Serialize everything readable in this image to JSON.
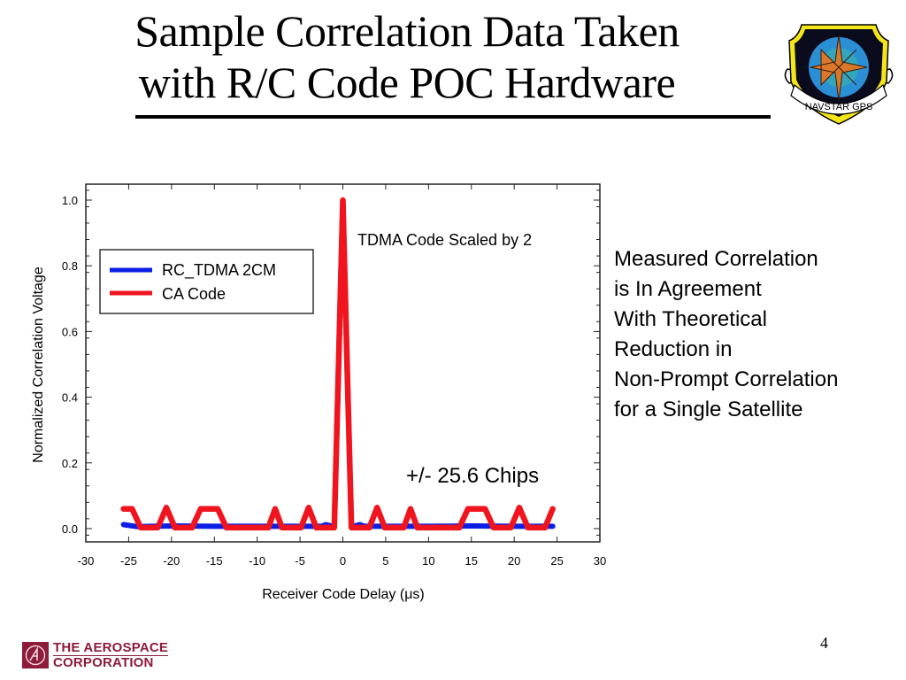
{
  "slide": {
    "title_lines": [
      "Sample Correlation Data Taken",
      "with R/C Code POC Hardware"
    ],
    "side_text_lines": [
      "Measured Correlation",
      "is In Agreement",
      "With Theoretical",
      "Reduction in",
      "Non-Prompt Correlation",
      "for a Single Satellite"
    ],
    "page_number": "4",
    "emblem": {
      "name": "navstar-gps-emblem",
      "text": "NAVSTAR GPS"
    },
    "footer_logo": {
      "line1": "THE AEROSPACE",
      "line2": "CORPORATION",
      "color": "#8e1b3a"
    }
  },
  "chart_data": {
    "type": "line",
    "title": "",
    "xlabel": "Receiver Code Delay (μs)",
    "ylabel": "Normalized Correlation Voltage",
    "xlim": [
      -30,
      30
    ],
    "ylim": [
      -0.04,
      1.05
    ],
    "xticks": [
      -30,
      -25,
      -20,
      -15,
      -10,
      -5,
      0,
      5,
      10,
      15,
      20,
      25,
      30
    ],
    "xtick_labels": [
      "-30",
      "-25",
      "-20",
      "-15",
      "-10",
      "-5",
      "0",
      "5",
      "10",
      "15",
      "20",
      "25",
      "30"
    ],
    "yticks": [
      0.0,
      0.2,
      0.4,
      0.6,
      0.8,
      1.0
    ],
    "ytick_labels": [
      "0.0",
      "0.2",
      "0.4",
      "0.6",
      "0.8",
      "1.0"
    ],
    "grid": false,
    "legend": {
      "position": "top-left",
      "entries": [
        "RC_TDMA 2CM",
        "CA Code"
      ]
    },
    "annotations": [
      {
        "text": "TDMA Code Scaled by 2",
        "x": 2,
        "y": 0.88
      },
      {
        "text": "+/- 25.6 Chips",
        "x": 7.5,
        "y": 0.16
      }
    ],
    "series": [
      {
        "name": "RC_TDMA 2CM",
        "color": "#0a1ee6",
        "x": [
          -25.6,
          -24,
          -20,
          -15,
          -10,
          -5,
          -2.5,
          -2,
          -1.2,
          -1,
          -0.5,
          0,
          0.5,
          1,
          1.2,
          2,
          2.5,
          5,
          10,
          15,
          20,
          24.5
        ],
        "y": [
          0.012,
          0.006,
          0.008,
          0.007,
          0.007,
          0.007,
          0.007,
          0.012,
          0.007,
          0.006,
          0.5,
          1.0,
          0.5,
          0.006,
          0.007,
          0.012,
          0.007,
          0.007,
          0.007,
          0.008,
          0.007,
          0.007
        ]
      },
      {
        "name": "CA Code",
        "color": "#f0141e",
        "x": [
          -25.6,
          -24.6,
          -23.6,
          -21.6,
          -20.6,
          -19.6,
          -17.6,
          -16.6,
          -14.6,
          -13.6,
          -8.7,
          -7.9,
          -7.1,
          -4.9,
          -4.0,
          -3.1,
          -1.1,
          -1.0,
          -0.5,
          0,
          0.5,
          1.0,
          1.1,
          3.1,
          4.0,
          4.9,
          7.1,
          7.9,
          8.7,
          13.6,
          14.6,
          16.6,
          17.6,
          19.6,
          20.6,
          21.6,
          23.6,
          24.5
        ],
        "y": [
          0.06,
          0.06,
          0.003,
          0.003,
          0.064,
          0.003,
          0.003,
          0.06,
          0.06,
          0.003,
          0.003,
          0.06,
          0.003,
          0.003,
          0.064,
          0.003,
          0.003,
          0.003,
          0.5,
          1.0,
          0.5,
          0.003,
          0.003,
          0.003,
          0.064,
          0.003,
          0.003,
          0.06,
          0.003,
          0.003,
          0.06,
          0.06,
          0.003,
          0.003,
          0.064,
          0.003,
          0.003,
          0.06
        ]
      }
    ]
  }
}
